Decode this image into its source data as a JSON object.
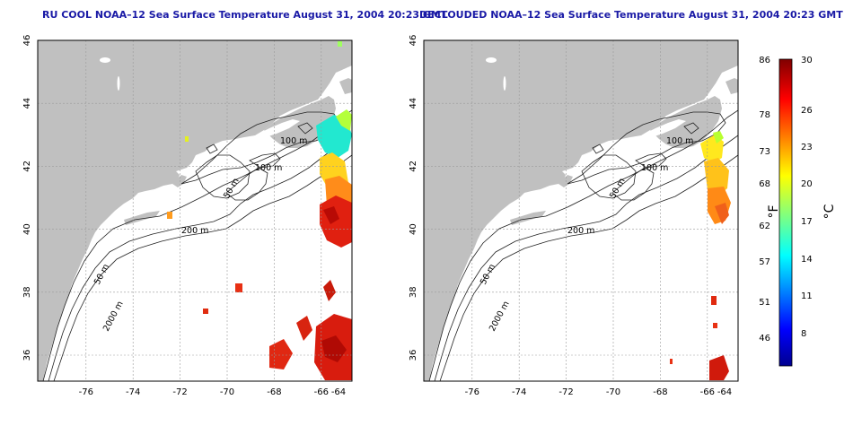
{
  "panels": [
    {
      "id": "left",
      "title": "RU COOL NOAA–12 Sea Surface Temperature August 31, 2004 20:23 GMT"
    },
    {
      "id": "right",
      "title": "DECLOUDED NOAA–12 Sea Surface Temperature August 31, 2004 20:23 GMT"
    }
  ],
  "axes": {
    "x_ticks": [
      "-76",
      "-74",
      "-72",
      "-70",
      "-68",
      "-66",
      "-64"
    ],
    "y_ticks": [
      "46",
      "44",
      "42",
      "40",
      "38",
      "36"
    ]
  },
  "contour_labels": [
    "100 m",
    "100 m",
    "50 m",
    "200 m",
    "50 m",
    "2000 m"
  ],
  "colorbar": {
    "fahrenheit_ticks": [
      "86",
      "78",
      "73",
      "68",
      "62",
      "57",
      "51",
      "46"
    ],
    "celsius_ticks": [
      "30",
      "26",
      "23",
      "20",
      "17",
      "14",
      "11",
      "8"
    ],
    "unit_f": "°F",
    "unit_c": "°C",
    "range_c": [
      5,
      30
    ]
  },
  "colors": {
    "land": "#c0c0c0",
    "ocean": "#ffffff",
    "grid": "#9a9a9a",
    "title": "#1a1aa6"
  }
}
